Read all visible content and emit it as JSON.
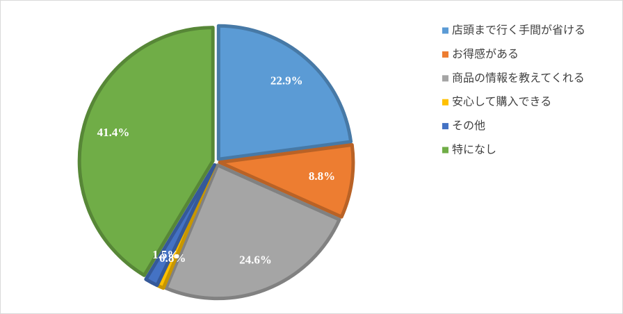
{
  "chart_data": {
    "type": "pie",
    "categories": [
      "店頭まで行く手間が省ける",
      "お得感がある",
      "商品の情報を教えてくれる",
      "安心して購入できる",
      "その他",
      "特になし"
    ],
    "values": [
      22.9,
      8.8,
      24.6,
      0.8,
      1.5,
      41.4
    ],
    "value_labels": [
      "22.9%",
      "8.8%",
      "24.6%",
      "0.8%",
      "1.5%",
      "41.4%"
    ],
    "colors": [
      "#5b9bd5",
      "#ed7d31",
      "#a5a5a5",
      "#ffc000",
      "#4472c4",
      "#70ad47"
    ],
    "legend": "right"
  }
}
